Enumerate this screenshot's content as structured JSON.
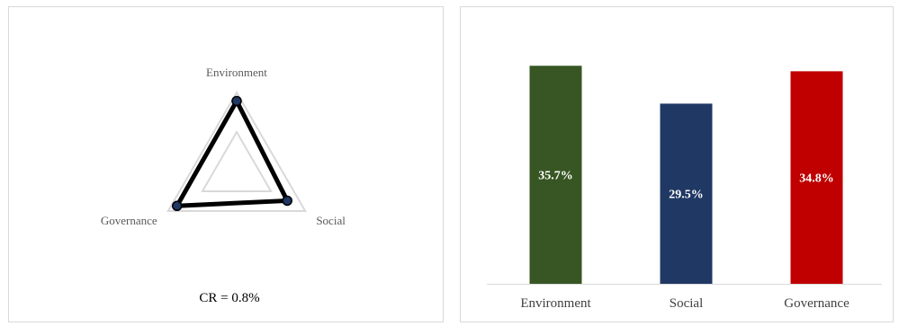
{
  "chart_data": [
    {
      "type": "radar",
      "categories": [
        "Environment",
        "Social",
        "Governance"
      ],
      "series": [
        {
          "values": [
            35.7,
            29.5,
            34.8
          ],
          "color": "#000000",
          "marker_color": "#1f3864"
        }
      ],
      "rlim": [
        0,
        40
      ],
      "grid": true,
      "annotation": "CR = 0.8%"
    },
    {
      "type": "bar",
      "categories": [
        "Environment",
        "Social",
        "Governance"
      ],
      "values": [
        35.7,
        29.5,
        34.8
      ],
      "data_labels": [
        "35.7%",
        "29.5%",
        "34.8%"
      ],
      "colors": [
        "#375623",
        "#203864",
        "#c00000"
      ],
      "ylim": [
        0,
        40
      ],
      "grid": false
    }
  ]
}
